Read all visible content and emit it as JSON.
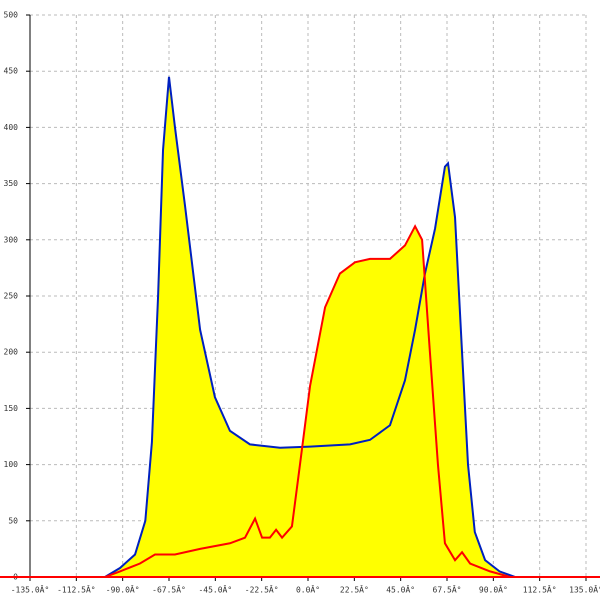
{
  "chart_data": {
    "type": "area",
    "xlim": [
      -135,
      135
    ],
    "ylim": [
      0,
      500
    ],
    "xticks": [
      {
        "value": -135,
        "label": "-135.0Â°"
      },
      {
        "value": -112.5,
        "label": "-112.5Â°"
      },
      {
        "value": -90,
        "label": "-90.0Â°"
      },
      {
        "value": -67.5,
        "label": "-67.5Â°"
      },
      {
        "value": -45,
        "label": "-45.0Â°"
      },
      {
        "value": -22.5,
        "label": "-22.5Â°"
      },
      {
        "value": 0,
        "label": "0.0Â°"
      },
      {
        "value": 22.5,
        "label": "22.5Â°"
      },
      {
        "value": 45,
        "label": "45.0Â°"
      },
      {
        "value": 67.5,
        "label": "67.5Â°"
      },
      {
        "value": 90,
        "label": "90.0Â°"
      },
      {
        "value": 112.5,
        "label": "112.5Â°"
      },
      {
        "value": 135,
        "label": "135.0Â°"
      }
    ],
    "yticks": [
      0,
      50,
      100,
      150,
      200,
      250,
      300,
      350,
      400,
      450,
      500
    ],
    "grid": true,
    "fill_color": "#ffff00",
    "series": [
      {
        "color": "#0020c0",
        "x": [
          -98.6,
          -91.3,
          -84,
          -79,
          -75.8,
          -72.8,
          -70.4,
          -67.5,
          -64.6,
          -59.7,
          -52.4,
          -45.2,
          -37.9,
          -28.2,
          -13.6,
          1,
          20.4,
          30.1,
          39.8,
          47.1,
          52,
          56.8,
          61.7,
          66.5,
          68,
          71.4,
          74.8,
          77.7,
          81,
          86,
          93,
          100.5
        ],
        "values": [
          0,
          8,
          20,
          50,
          120,
          250,
          380,
          445,
          400,
          330,
          220,
          160,
          130,
          118,
          115,
          116,
          118,
          122,
          135,
          175,
          220,
          270,
          310,
          365,
          368,
          320,
          200,
          100,
          40,
          15,
          5,
          0
        ]
      },
      {
        "color": "#ff0000",
        "x": [
          -98.6,
          -91.3,
          -81.6,
          -74.3,
          -64.6,
          -52.4,
          -37.9,
          -30.6,
          -25.7,
          -22.3,
          -18.5,
          -15.5,
          -12.6,
          -7.8,
          -3.9,
          1,
          8.3,
          15.5,
          22.8,
          30.1,
          39.8,
          47.1,
          52,
          55.4,
          59.2,
          63.1,
          66.5,
          71.4,
          74.8,
          78.7,
          88.4,
          98.1
        ],
        "values": [
          0,
          5,
          12,
          20,
          20,
          25,
          30,
          35,
          52,
          35,
          35,
          42,
          35,
          45,
          100,
          170,
          240,
          270,
          280,
          283,
          283,
          295,
          312,
          300,
          200,
          100,
          30,
          15,
          22,
          12,
          5,
          0
        ]
      }
    ]
  }
}
